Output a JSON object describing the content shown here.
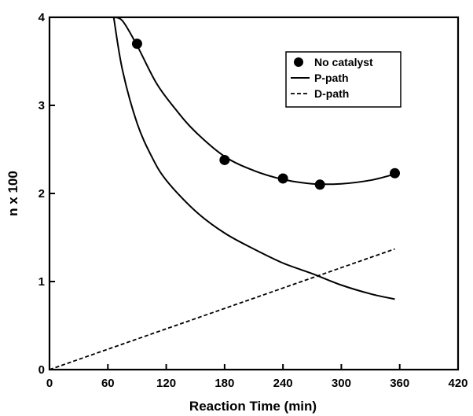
{
  "chart_data": {
    "type": "line",
    "title": "",
    "xlabel": "Reaction Time (min)",
    "ylabel": "n x 100",
    "xlim": [
      0,
      420
    ],
    "ylim": [
      0,
      4
    ],
    "x_ticks": [
      0,
      60,
      120,
      180,
      240,
      300,
      360,
      420
    ],
    "y_ticks": [
      0,
      1,
      2,
      3,
      4
    ],
    "x_tick_labels": [
      "0",
      "60",
      "120",
      "180",
      "240",
      "300",
      "360",
      "420"
    ],
    "y_tick_labels": [
      "0",
      "1",
      "2",
      "3",
      "4"
    ],
    "grid": false,
    "legend_position": "top-right",
    "legend": [
      "No catalyst",
      "P-path",
      "D-path"
    ],
    "series": [
      {
        "name": "No catalyst",
        "style": "markers-with-fit-line",
        "points": [
          [
            90,
            3.7
          ],
          [
            180,
            2.38
          ],
          [
            240,
            2.17
          ],
          [
            278,
            2.1
          ],
          [
            355,
            2.23
          ]
        ],
        "fit_curve": [
          [
            65,
            4.0
          ],
          [
            75,
            3.96
          ],
          [
            90,
            3.68
          ],
          [
            110,
            3.25
          ],
          [
            130,
            2.95
          ],
          [
            150,
            2.7
          ],
          [
            180,
            2.42
          ],
          [
            210,
            2.26
          ],
          [
            240,
            2.16
          ],
          [
            270,
            2.11
          ],
          [
            300,
            2.11
          ],
          [
            330,
            2.15
          ],
          [
            355,
            2.22
          ]
        ]
      },
      {
        "name": "P-path",
        "style": "solid",
        "points": [
          [
            66,
            4.0
          ],
          [
            75,
            3.4
          ],
          [
            90,
            2.8
          ],
          [
            105,
            2.42
          ],
          [
            120,
            2.15
          ],
          [
            150,
            1.8
          ],
          [
            180,
            1.55
          ],
          [
            210,
            1.37
          ],
          [
            240,
            1.21
          ],
          [
            270,
            1.09
          ],
          [
            300,
            0.96
          ],
          [
            330,
            0.86
          ],
          [
            355,
            0.8
          ]
        ]
      },
      {
        "name": "D-path",
        "style": "dashed",
        "points": [
          [
            0,
            0.0
          ],
          [
            355,
            1.37
          ]
        ]
      }
    ]
  }
}
